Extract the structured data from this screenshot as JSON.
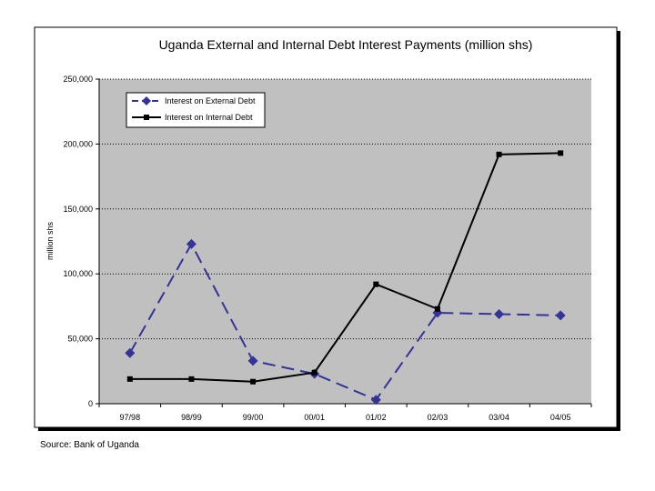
{
  "chart_data": {
    "type": "line",
    "title": "Uganda External and Internal Debt Interest Payments (million shs)",
    "xlabel": "",
    "ylabel": "million shs",
    "categories": [
      "97/98",
      "98/99",
      "99/00",
      "00/01",
      "01/02",
      "02/03",
      "03/04",
      "04/05"
    ],
    "ylim": [
      0,
      250000
    ],
    "yticks": [
      0,
      50000,
      100000,
      150000,
      200000,
      250000
    ],
    "ytick_labels": [
      "0",
      "50,000",
      "100,000",
      "150,000",
      "200,000",
      "250,000"
    ],
    "grid": "horizontal dotted",
    "legend_position": "top-left",
    "plot_background": "#c0c0c0",
    "series": [
      {
        "name": "Interest on External Debt",
        "color": "#333399",
        "line_style": "dashed",
        "marker": "diamond",
        "values": [
          39000,
          123000,
          33000,
          23000,
          3000,
          70000,
          69000,
          68000
        ]
      },
      {
        "name": "Interest on Internal Debt",
        "color": "#000000",
        "line_style": "solid",
        "marker": "square",
        "values": [
          19000,
          19000,
          17000,
          24000,
          92000,
          73000,
          192000,
          193000
        ]
      }
    ]
  },
  "source_note": "Source: Bank of Uganda"
}
